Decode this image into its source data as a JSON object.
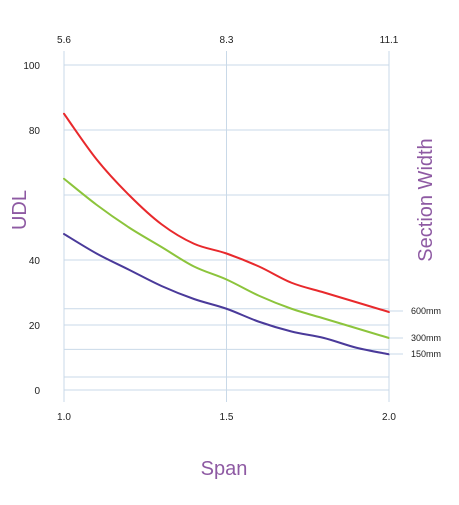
{
  "chart_data": {
    "type": "line",
    "xlabel": "Span",
    "ylabel": "UDL",
    "right_label": "Section Width",
    "xlim": [
      1.0,
      2.0
    ],
    "ylim": [
      0,
      100
    ],
    "x_ticks": [
      "1.0",
      "1.5",
      "2.0"
    ],
    "y_ticks": [
      "0",
      "20",
      "40",
      "80",
      "100"
    ],
    "top_ticks": [
      "5.6",
      "8.3",
      "11.1"
    ],
    "grid": true,
    "legend": "right-edge labels",
    "series": [
      {
        "name": "600mm",
        "color": "#e8292c",
        "points": [
          [
            1.0,
            85
          ],
          [
            1.1,
            71
          ],
          [
            1.2,
            60
          ],
          [
            1.3,
            51
          ],
          [
            1.4,
            45
          ],
          [
            1.5,
            42
          ],
          [
            1.6,
            38
          ],
          [
            1.7,
            33
          ],
          [
            1.8,
            30
          ],
          [
            1.9,
            27
          ],
          [
            2.0,
            24
          ]
        ]
      },
      {
        "name": "300mm",
        "color": "#8cc43c",
        "points": [
          [
            1.0,
            65
          ],
          [
            1.1,
            57
          ],
          [
            1.2,
            50
          ],
          [
            1.3,
            44
          ],
          [
            1.4,
            38
          ],
          [
            1.5,
            34
          ],
          [
            1.6,
            29
          ],
          [
            1.7,
            25
          ],
          [
            1.8,
            22
          ],
          [
            1.9,
            19
          ],
          [
            2.0,
            16
          ]
        ]
      },
      {
        "name": "150mm",
        "color": "#4a3a9a",
        "points": [
          [
            1.0,
            48
          ],
          [
            1.1,
            42
          ],
          [
            1.2,
            37
          ],
          [
            1.3,
            32
          ],
          [
            1.4,
            28
          ],
          [
            1.5,
            25
          ],
          [
            1.6,
            21
          ],
          [
            1.7,
            18
          ],
          [
            1.8,
            16
          ],
          [
            1.9,
            13
          ],
          [
            2.0,
            11
          ]
        ]
      }
    ],
    "label_color": "#8e5aa3",
    "grid_color": "#c9d9e8",
    "text_color": "#222222"
  }
}
